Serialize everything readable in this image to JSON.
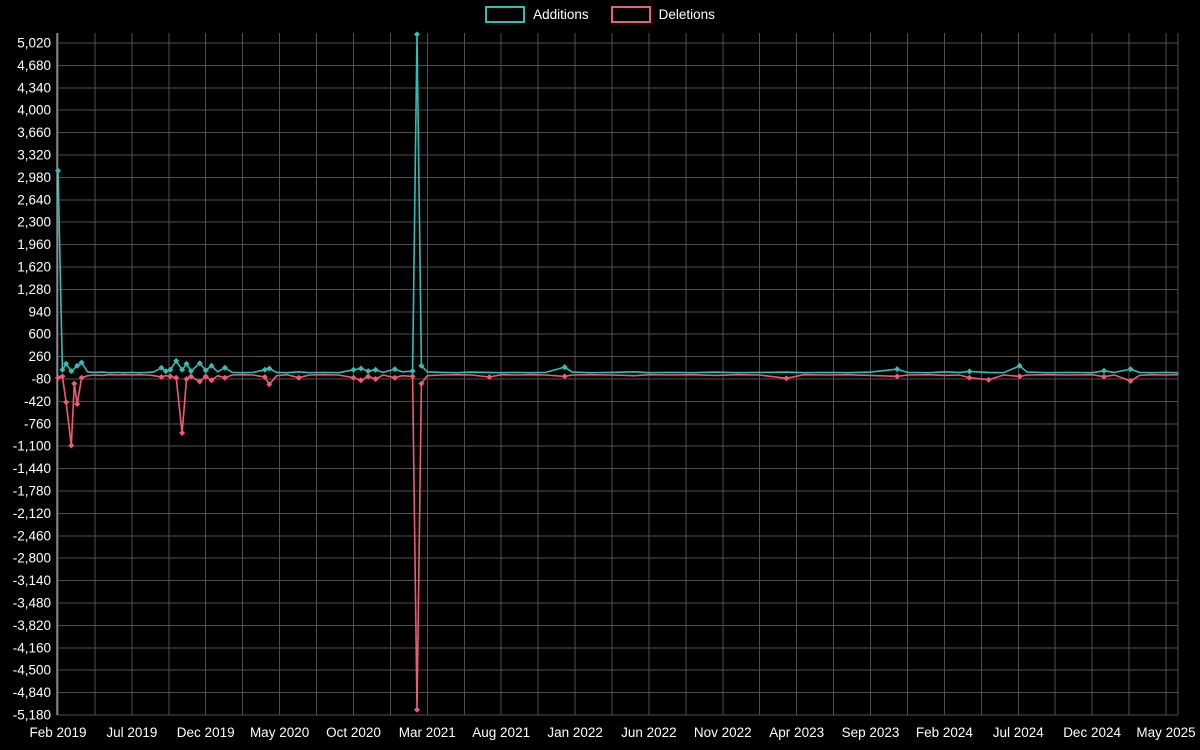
{
  "chart_data": {
    "type": "line",
    "title": "",
    "background": "#000000",
    "grid_color": "#4f4f4f",
    "axis_color": "#c8c8c8",
    "text_color": "#ffffff",
    "legend_position": "top",
    "grid": true,
    "ylim": [
      -5180,
      5020
    ],
    "y_tick_step": 340,
    "x_unit": "months since Feb 2019",
    "x_labels": [
      "Feb 2019",
      "Jul 2019",
      "Dec 2019",
      "May 2020",
      "Oct 2020",
      "Mar 2021",
      "Aug 2021",
      "Jan 2022",
      "Jun 2022",
      "Nov 2022",
      "Apr 2023",
      "Sep 2023",
      "Feb 2024",
      "Jul 2024",
      "Dec 2024",
      "May 2025"
    ],
    "x_label_positions": [
      0,
      5,
      10,
      15,
      20,
      25,
      30,
      35,
      40,
      45,
      50,
      55,
      60,
      65,
      70,
      75
    ],
    "series": [
      {
        "name": "Additions",
        "color": "#2fbfb7",
        "points": [
          [
            0,
            3080
          ],
          [
            0.3,
            60
          ],
          [
            0.55,
            150
          ],
          [
            0.9,
            40
          ],
          [
            1.3,
            120
          ],
          [
            1.6,
            170
          ],
          [
            2,
            30
          ],
          [
            2.5,
            20
          ],
          [
            3,
            25
          ],
          [
            3.5,
            15
          ],
          [
            4,
            20
          ],
          [
            4.5,
            15
          ],
          [
            5,
            20
          ],
          [
            5.5,
            15
          ],
          [
            6,
            20
          ],
          [
            6.5,
            30
          ],
          [
            7,
            90
          ],
          [
            7.3,
            40
          ],
          [
            7.6,
            60
          ],
          [
            8,
            195
          ],
          [
            8.4,
            60
          ],
          [
            8.7,
            150
          ],
          [
            9,
            40
          ],
          [
            9.6,
            160
          ],
          [
            10,
            50
          ],
          [
            10.4,
            120
          ],
          [
            10.8,
            30
          ],
          [
            11.3,
            90
          ],
          [
            11.8,
            20
          ],
          [
            12.5,
            15
          ],
          [
            13.2,
            20
          ],
          [
            14,
            60
          ],
          [
            14.3,
            80
          ],
          [
            14.8,
            20
          ],
          [
            15.5,
            15
          ],
          [
            16.3,
            30
          ],
          [
            17,
            15
          ],
          [
            18,
            20
          ],
          [
            19,
            15
          ],
          [
            20,
            60
          ],
          [
            20.5,
            80
          ],
          [
            21,
            40
          ],
          [
            21.5,
            60
          ],
          [
            22,
            20
          ],
          [
            22.8,
            70
          ],
          [
            23.3,
            30
          ],
          [
            24,
            40
          ],
          [
            24.3,
            5150
          ],
          [
            24.6,
            120
          ],
          [
            25,
            30
          ],
          [
            26,
            20
          ],
          [
            27,
            15
          ],
          [
            28,
            25
          ],
          [
            29.2,
            20
          ],
          [
            30,
            15
          ],
          [
            31,
            20
          ],
          [
            32,
            15
          ],
          [
            33,
            20
          ],
          [
            34.3,
            100
          ],
          [
            34.8,
            25
          ],
          [
            36,
            15
          ],
          [
            37.5,
            20
          ],
          [
            39,
            30
          ],
          [
            40,
            15
          ],
          [
            41.5,
            20
          ],
          [
            43,
            15
          ],
          [
            44.5,
            25
          ],
          [
            46,
            15
          ],
          [
            47.5,
            20
          ],
          [
            49.3,
            25
          ],
          [
            50.5,
            15
          ],
          [
            52,
            20
          ],
          [
            53.5,
            15
          ],
          [
            55,
            25
          ],
          [
            56.8,
            70
          ],
          [
            57.5,
            20
          ],
          [
            59,
            15
          ],
          [
            60,
            30
          ],
          [
            61,
            20
          ],
          [
            61.7,
            35
          ],
          [
            63,
            20
          ],
          [
            64,
            15
          ],
          [
            65.1,
            120
          ],
          [
            65.6,
            25
          ],
          [
            67,
            15
          ],
          [
            68.5,
            20
          ],
          [
            70,
            15
          ],
          [
            70.8,
            45
          ],
          [
            71.5,
            20
          ],
          [
            72.6,
            70
          ],
          [
            73.2,
            20
          ],
          [
            74,
            15
          ],
          [
            75,
            20
          ],
          [
            75.8,
            15
          ]
        ]
      },
      {
        "name": "Deletions",
        "color": "#ef5b76",
        "points": [
          [
            0,
            -60
          ],
          [
            0.3,
            -40
          ],
          [
            0.55,
            -430
          ],
          [
            0.9,
            -1090
          ],
          [
            1.1,
            -150
          ],
          [
            1.3,
            -460
          ],
          [
            1.6,
            -60
          ],
          [
            2,
            -30
          ],
          [
            2.5,
            -20
          ],
          [
            3,
            -25
          ],
          [
            3.5,
            -15
          ],
          [
            4,
            -20
          ],
          [
            4.5,
            -15
          ],
          [
            5,
            -20
          ],
          [
            5.5,
            -15
          ],
          [
            6,
            -20
          ],
          [
            6.5,
            -30
          ],
          [
            7,
            -50
          ],
          [
            7.3,
            -30
          ],
          [
            7.6,
            -40
          ],
          [
            8,
            -60
          ],
          [
            8.4,
            -900
          ],
          [
            8.7,
            -80
          ],
          [
            9,
            -40
          ],
          [
            9.6,
            -120
          ],
          [
            10,
            -40
          ],
          [
            10.4,
            -100
          ],
          [
            10.8,
            -30
          ],
          [
            11.3,
            -60
          ],
          [
            11.8,
            -20
          ],
          [
            12.5,
            -15
          ],
          [
            13.2,
            -20
          ],
          [
            14,
            -50
          ],
          [
            14.3,
            -160
          ],
          [
            14.8,
            -30
          ],
          [
            15.5,
            -15
          ],
          [
            16.3,
            -60
          ],
          [
            17,
            -20
          ],
          [
            18,
            -15
          ],
          [
            19,
            -20
          ],
          [
            20,
            -60
          ],
          [
            20.5,
            -100
          ],
          [
            21,
            -40
          ],
          [
            21.5,
            -80
          ],
          [
            22,
            -20
          ],
          [
            22.8,
            -60
          ],
          [
            23.3,
            -30
          ],
          [
            24,
            -40
          ],
          [
            24.3,
            -5100
          ],
          [
            24.6,
            -150
          ],
          [
            25,
            -30
          ],
          [
            26,
            -20
          ],
          [
            27,
            -15
          ],
          [
            28,
            -20
          ],
          [
            29.2,
            -50
          ],
          [
            30,
            -15
          ],
          [
            31,
            -20
          ],
          [
            32,
            -15
          ],
          [
            33,
            -20
          ],
          [
            34.3,
            -40
          ],
          [
            34.8,
            -20
          ],
          [
            36,
            -15
          ],
          [
            37.5,
            -20
          ],
          [
            39,
            -30
          ],
          [
            40,
            -15
          ],
          [
            41.5,
            -20
          ],
          [
            43,
            -15
          ],
          [
            44.5,
            -25
          ],
          [
            46,
            -15
          ],
          [
            47.5,
            -20
          ],
          [
            49.3,
            -70
          ],
          [
            50.5,
            -15
          ],
          [
            52,
            -20
          ],
          [
            53.5,
            -15
          ],
          [
            55,
            -25
          ],
          [
            56.8,
            -40
          ],
          [
            57.5,
            -20
          ],
          [
            59,
            -15
          ],
          [
            60,
            -25
          ],
          [
            61,
            -20
          ],
          [
            61.7,
            -60
          ],
          [
            63,
            -90
          ],
          [
            64,
            -20
          ],
          [
            65.1,
            -40
          ],
          [
            65.6,
            -20
          ],
          [
            67,
            -15
          ],
          [
            68.5,
            -20
          ],
          [
            70,
            -15
          ],
          [
            70.8,
            -45
          ],
          [
            71.5,
            -20
          ],
          [
            72.6,
            -110
          ],
          [
            73.2,
            -25
          ],
          [
            74,
            -15
          ],
          [
            75,
            -20
          ],
          [
            75.8,
            -15
          ]
        ]
      }
    ]
  }
}
